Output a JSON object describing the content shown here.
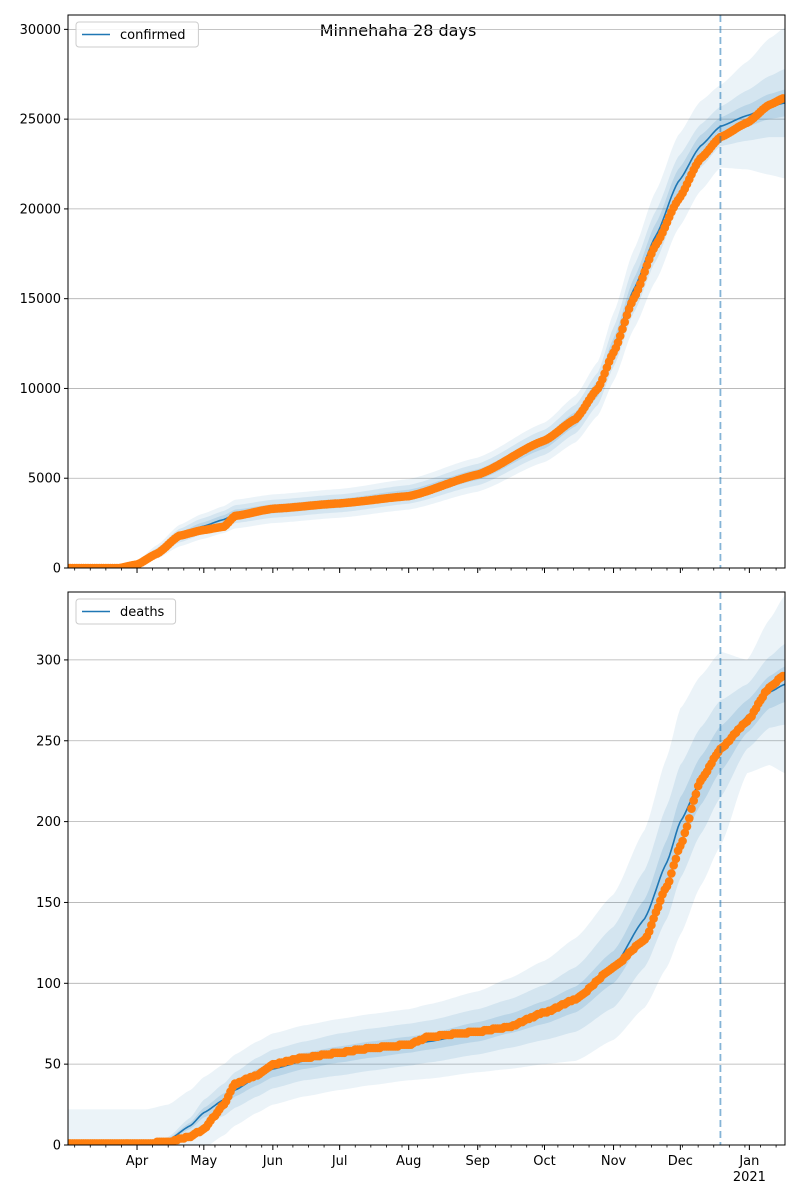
{
  "figure_title": "Minnehaha 28 days",
  "colors": {
    "fit_line": "#1f77b4",
    "band": "#1f77b4",
    "observed": "#ff7f0e",
    "grid": "#b0b0b0",
    "forecast_line": "#1f77b4"
  },
  "chart_data": [
    {
      "type": "scatter",
      "name": "confirmed-panel",
      "legend": [
        "confirmed"
      ],
      "legend_location": "upper-left",
      "x_start": "2020-03-01",
      "x_end": "2021-01-17",
      "x_tick_labels": [
        "Apr",
        "May",
        "Jun",
        "Jul",
        "Aug",
        "Sep",
        "Oct",
        "Nov",
        "Dec",
        "Jan\n2021"
      ],
      "ylim": [
        0,
        30800
      ],
      "y_ticks": [
        0,
        5000,
        10000,
        15000,
        20000,
        25000,
        30000
      ],
      "grid": "horizontal",
      "forecast_start": "2020-12-19",
      "observed_cumulative": {
        "dates": [
          "2020-03-01",
          "2020-03-24",
          "2020-04-01",
          "2020-04-10",
          "2020-04-20",
          "2020-04-30",
          "2020-05-10",
          "2020-05-15",
          "2020-06-01",
          "2020-07-01",
          "2020-08-01",
          "2020-09-01",
          "2020-10-01",
          "2020-10-15",
          "2020-10-25",
          "2020-11-01",
          "2020-11-10",
          "2020-11-20",
          "2020-11-30",
          "2020-12-10",
          "2020-12-19",
          "2020-12-31",
          "2021-01-10",
          "2021-01-17"
        ],
        "values": [
          0,
          0,
          200,
          800,
          1800,
          2100,
          2300,
          2900,
          3300,
          3600,
          4000,
          5200,
          7100,
          8300,
          10000,
          12000,
          15000,
          18000,
          20500,
          22800,
          24000,
          24800,
          25800,
          26200
        ]
      },
      "fit": {
        "dates": [
          "2020-03-01",
          "2020-03-24",
          "2020-04-01",
          "2020-04-10",
          "2020-04-20",
          "2020-04-30",
          "2020-05-10",
          "2020-05-15",
          "2020-06-01",
          "2020-07-01",
          "2020-08-01",
          "2020-09-01",
          "2020-10-01",
          "2020-10-15",
          "2020-10-25",
          "2020-11-01",
          "2020-11-10",
          "2020-11-20",
          "2020-11-30",
          "2020-12-10",
          "2020-12-19",
          "2020-12-31",
          "2021-01-10",
          "2021-01-17"
        ],
        "values": [
          0,
          0,
          250,
          900,
          1800,
          2300,
          2700,
          3000,
          3300,
          3600,
          4100,
          5200,
          7000,
          8300,
          10000,
          12300,
          15500,
          18500,
          21500,
          23500,
          24600,
          25200,
          25700,
          25900
        ],
        "band_halfwidths": [
          [
            0,
            0,
            40,
            100,
            180,
            220,
            240,
            250,
            250,
            250,
            260,
            300,
            350,
            400,
            450,
            500,
            600,
            700,
            700,
            600,
            500,
            600,
            700,
            750
          ],
          [
            0,
            0,
            90,
            220,
            380,
            450,
            480,
            500,
            500,
            500,
            520,
            600,
            700,
            800,
            900,
            1100,
            1300,
            1400,
            1400,
            1200,
            1100,
            1400,
            1700,
            1900
          ],
          [
            0,
            0,
            150,
            380,
            600,
            700,
            750,
            800,
            800,
            800,
            850,
            950,
            1100,
            1300,
            1500,
            1900,
            2200,
            2500,
            2600,
            2500,
            2300,
            3000,
            3800,
            4200
          ]
        ]
      }
    },
    {
      "type": "scatter",
      "name": "deaths-panel",
      "legend": [
        "deaths"
      ],
      "legend_location": "upper-left",
      "x_start": "2020-03-01",
      "x_end": "2021-01-17",
      "x_tick_labels": [
        "Apr",
        "May",
        "Jun",
        "Jul",
        "Aug",
        "Sep",
        "Oct",
        "Nov",
        "Dec",
        "Jan\n2021"
      ],
      "ylim": [
        0,
        342
      ],
      "y_ticks": [
        0,
        50,
        100,
        150,
        200,
        250,
        300
      ],
      "grid": "horizontal",
      "forecast_start": "2020-12-19",
      "observed_cumulative": {
        "dates": [
          "2020-03-01",
          "2020-04-05",
          "2020-04-15",
          "2020-04-25",
          "2020-05-01",
          "2020-05-10",
          "2020-05-15",
          "2020-05-25",
          "2020-06-01",
          "2020-06-15",
          "2020-07-01",
          "2020-07-15",
          "2020-08-01",
          "2020-08-10",
          "2020-09-01",
          "2020-09-15",
          "2020-10-01",
          "2020-10-15",
          "2020-11-01",
          "2020-11-15",
          "2020-11-25",
          "2020-12-01",
          "2020-12-10",
          "2020-12-19",
          "2020-12-31",
          "2021-01-10",
          "2021-01-17"
        ],
        "values": [
          1,
          1,
          2,
          5,
          10,
          25,
          38,
          43,
          50,
          54,
          57,
          60,
          62,
          67,
          70,
          73,
          82,
          90,
          110,
          127,
          160,
          185,
          225,
          245,
          262,
          283,
          291
        ]
      },
      "fit": {
        "dates": [
          "2020-03-01",
          "2020-04-05",
          "2020-04-15",
          "2020-04-25",
          "2020-05-01",
          "2020-05-10",
          "2020-05-15",
          "2020-05-25",
          "2020-06-01",
          "2020-06-15",
          "2020-07-01",
          "2020-07-15",
          "2020-08-01",
          "2020-08-10",
          "2020-09-01",
          "2020-09-15",
          "2020-10-01",
          "2020-10-15",
          "2020-11-01",
          "2020-11-15",
          "2020-11-25",
          "2020-12-01",
          "2020-12-10",
          "2020-12-19",
          "2020-12-31",
          "2021-01-10",
          "2021-01-17"
        ],
        "values": [
          0,
          0,
          3,
          12,
          20,
          28,
          34,
          42,
          47,
          52,
          56,
          59,
          62,
          64,
          70,
          75,
          82,
          90,
          110,
          140,
          175,
          200,
          225,
          245,
          265,
          280,
          285
        ],
        "band_halfwidths": [
          [
            0,
            0,
            1,
            2,
            3,
            4,
            4,
            5,
            5,
            5,
            5,
            5,
            5,
            5,
            6,
            6,
            7,
            8,
            10,
            12,
            14,
            15,
            15,
            14,
            10,
            10,
            11
          ],
          [
            0,
            0,
            2,
            5,
            8,
            10,
            11,
            12,
            12,
            12,
            13,
            13,
            13,
            13,
            14,
            15,
            17,
            20,
            25,
            30,
            35,
            35,
            33,
            30,
            20,
            22,
            25
          ],
          [
            22,
            22,
            22,
            22,
            22,
            22,
            22,
            22,
            22,
            22,
            22,
            22,
            22,
            23,
            25,
            28,
            32,
            38,
            45,
            55,
            65,
            70,
            65,
            60,
            35,
            45,
            55
          ]
        ]
      }
    }
  ]
}
